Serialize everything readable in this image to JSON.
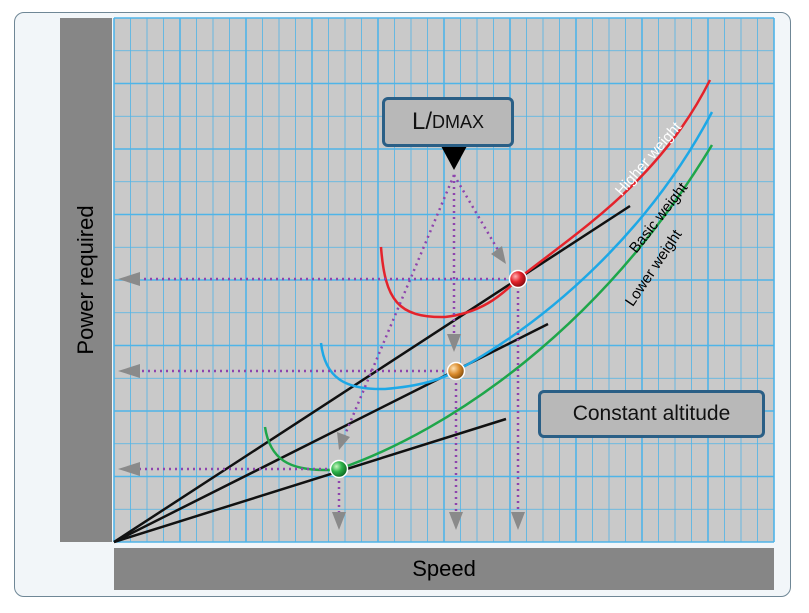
{
  "axes": {
    "y_label": "Power required",
    "x_label": "Speed"
  },
  "annotations": {
    "ldmax_main": "L/",
    "ldmax_sub": "DMAX",
    "constant_altitude": "Constant altitude"
  },
  "curve_labels": {
    "higher": "Higher weight",
    "basic": "Basic weight",
    "lower": "Lower weight"
  },
  "colors": {
    "grid_bg": "#c9c9c9",
    "grid_line": "#4fb4e8",
    "higher_curve": "#e4232b",
    "basic_curve": "#1ea8e6",
    "lower_curve": "#1fa64a",
    "tangent_line": "#111111",
    "guide_line": "#8e44ad",
    "arrow": "#8a8a8a",
    "box_border": "#2a5f86",
    "label_bar": "#868686"
  }
}
